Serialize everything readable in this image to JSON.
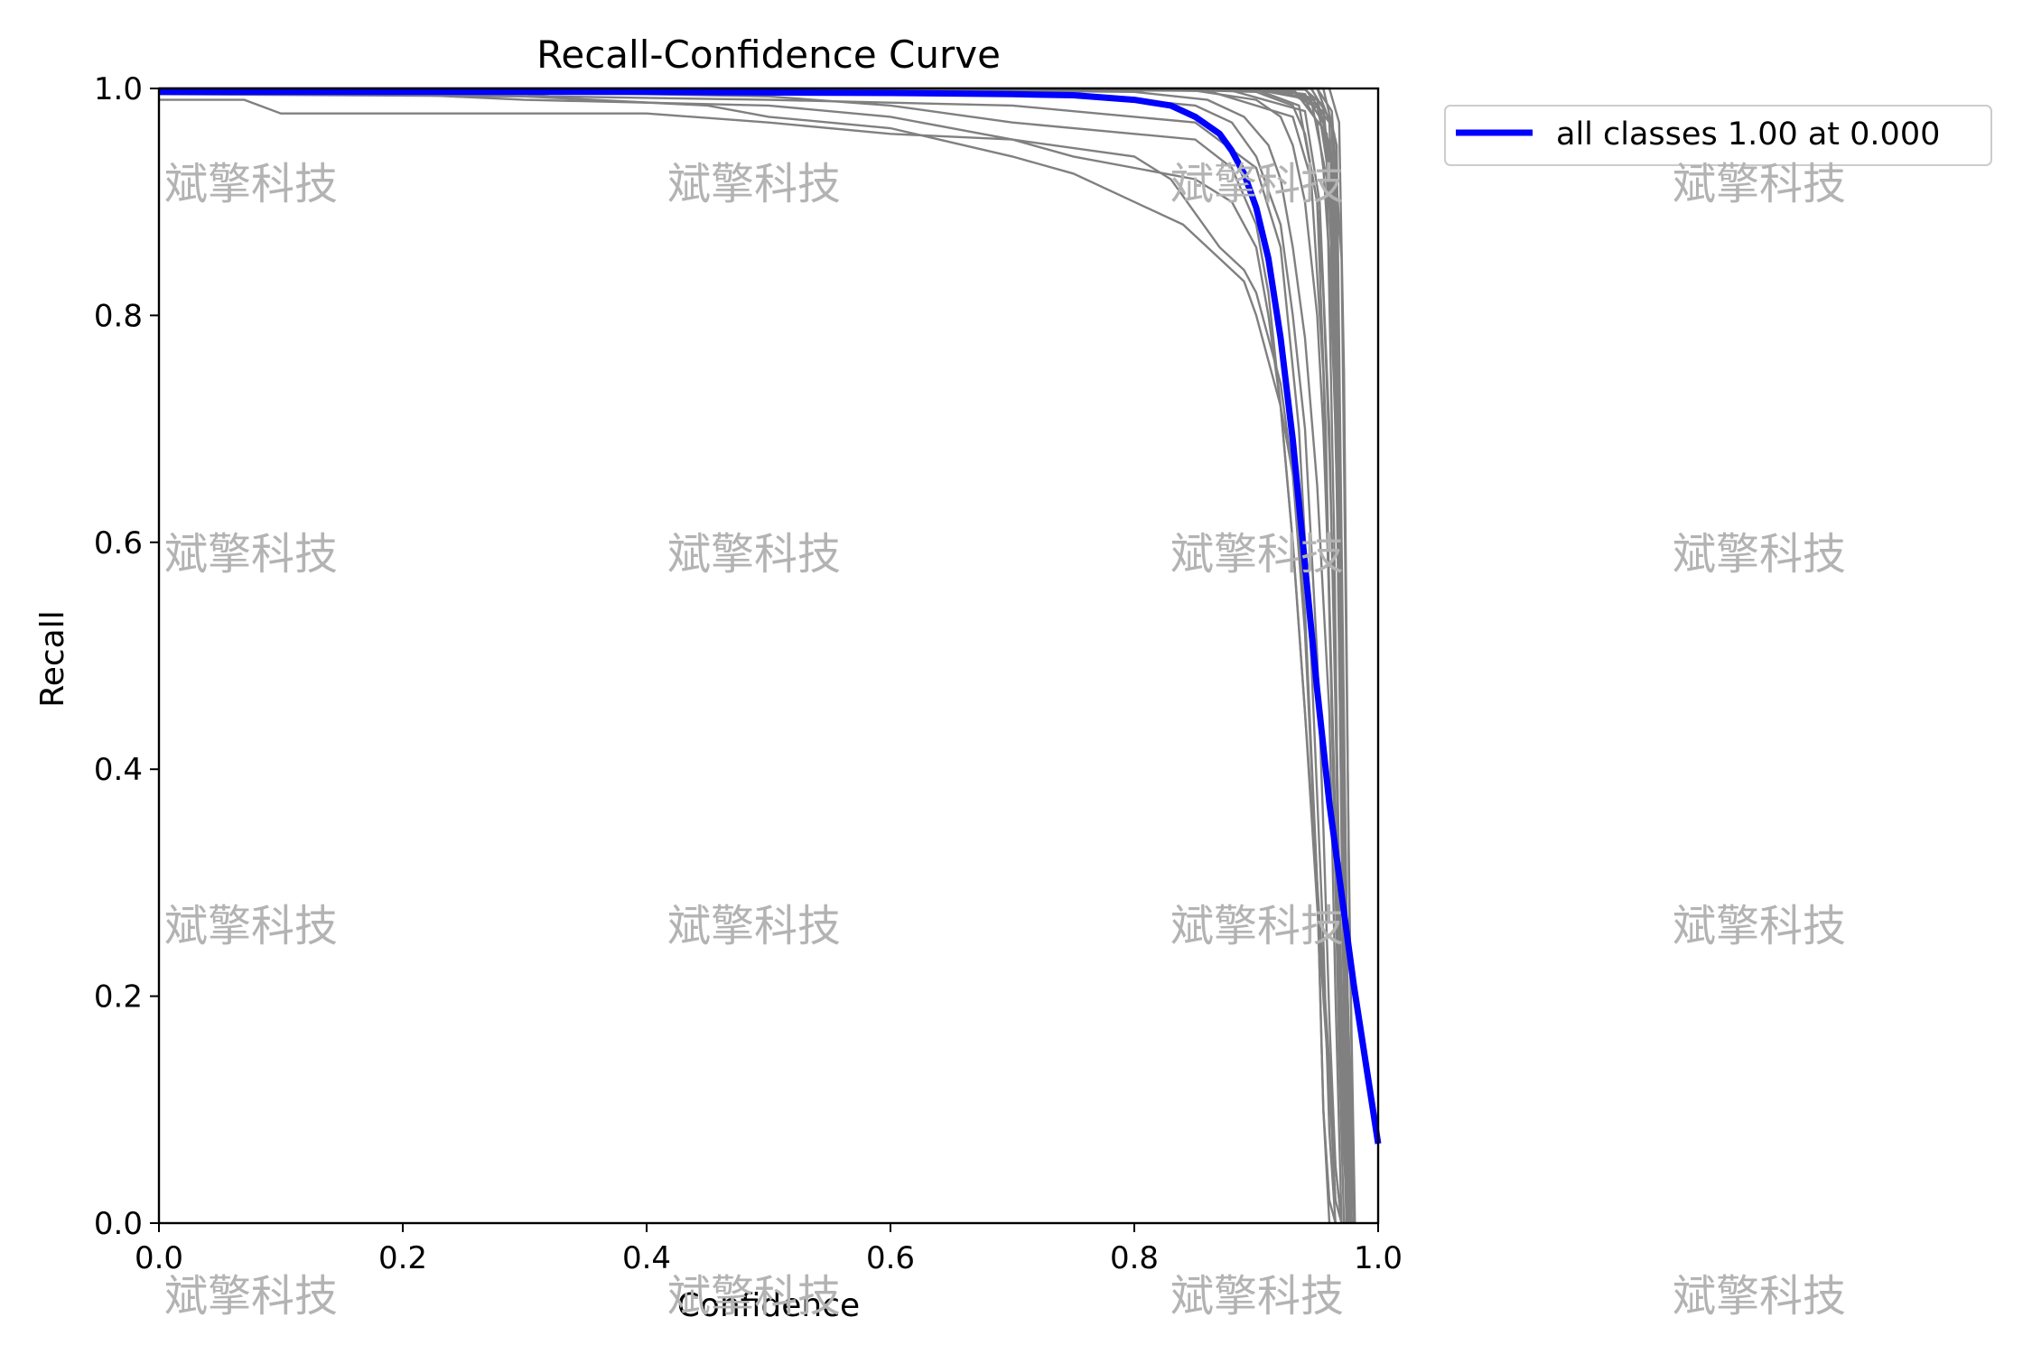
{
  "chart_data": {
    "type": "line",
    "title": "Recall-Confidence Curve",
    "xlabel": "Confidence",
    "ylabel": "Recall",
    "xlim": [
      0,
      1
    ],
    "ylim": [
      0,
      1
    ],
    "xticks": [
      "0.0",
      "0.2",
      "0.4",
      "0.6",
      "0.8",
      "1.0"
    ],
    "yticks": [
      "0.0",
      "0.2",
      "0.4",
      "0.6",
      "0.8",
      "1.0"
    ],
    "grid": false,
    "legend_position": "outside-top-right",
    "series": [
      {
        "name": "all classes 1.00 at 0.000",
        "color": "#0000ff",
        "x": [
          0.0,
          0.2,
          0.4,
          0.6,
          0.7,
          0.75,
          0.8,
          0.83,
          0.85,
          0.87,
          0.88,
          0.89,
          0.9,
          0.91,
          0.92,
          0.93,
          0.94,
          0.95,
          0.96,
          0.97,
          0.98,
          0.99,
          1.0
        ],
        "y": [
          0.997,
          0.997,
          0.997,
          0.996,
          0.995,
          0.994,
          0.99,
          0.985,
          0.975,
          0.96,
          0.945,
          0.925,
          0.895,
          0.85,
          0.78,
          0.69,
          0.58,
          0.47,
          0.37,
          0.29,
          0.21,
          0.14,
          0.07
        ]
      }
    ],
    "class_curves_color": "#808080",
    "class_curves": [
      {
        "x": [
          0.0,
          0.07,
          0.1,
          0.4,
          0.5,
          0.6,
          0.7,
          0.8,
          0.83,
          0.85,
          0.87,
          0.89,
          0.9,
          0.91,
          0.92,
          0.93,
          0.94,
          0.95,
          0.955,
          0.96,
          0.965
        ],
        "y": [
          0.99,
          0.99,
          0.978,
          0.978,
          0.97,
          0.96,
          0.955,
          0.94,
          0.92,
          0.89,
          0.86,
          0.84,
          0.82,
          0.78,
          0.74,
          0.66,
          0.54,
          0.3,
          0.1,
          0.02,
          0.0
        ]
      },
      {
        "x": [
          0.0,
          0.3,
          0.45,
          0.5,
          0.6,
          0.7,
          0.75,
          0.8,
          0.84,
          0.87,
          0.89,
          0.9,
          0.91,
          0.92,
          0.93,
          0.94,
          0.95,
          0.955,
          0.96
        ],
        "y": [
          0.995,
          0.993,
          0.985,
          0.975,
          0.965,
          0.94,
          0.925,
          0.9,
          0.88,
          0.85,
          0.83,
          0.8,
          0.76,
          0.72,
          0.66,
          0.52,
          0.3,
          0.1,
          0.0
        ]
      },
      {
        "x": [
          0.0,
          0.2,
          0.3,
          0.5,
          0.6,
          0.7,
          0.75,
          0.8,
          0.85,
          0.88,
          0.9,
          0.91,
          0.92,
          0.93,
          0.94,
          0.95,
          0.96,
          0.965,
          0.97
        ],
        "y": [
          0.997,
          0.995,
          0.99,
          0.985,
          0.975,
          0.955,
          0.94,
          0.93,
          0.92,
          0.9,
          0.86,
          0.8,
          0.72,
          0.6,
          0.45,
          0.28,
          0.12,
          0.02,
          0.0
        ]
      },
      {
        "x": [
          0.0,
          0.3,
          0.5,
          0.6,
          0.7,
          0.8,
          0.85,
          0.88,
          0.9,
          0.91,
          0.92,
          0.93,
          0.94,
          0.95,
          0.96,
          0.965,
          0.97
        ],
        "y": [
          0.998,
          0.997,
          0.993,
          0.985,
          0.97,
          0.96,
          0.955,
          0.93,
          0.88,
          0.82,
          0.72,
          0.6,
          0.45,
          0.3,
          0.14,
          0.05,
          0.0
        ]
      },
      {
        "x": [
          0.0,
          0.5,
          0.7,
          0.8,
          0.85,
          0.88,
          0.9,
          0.92,
          0.93,
          0.94,
          0.95,
          0.955,
          0.96,
          0.965,
          0.97
        ],
        "y": [
          1.0,
          0.998,
          0.995,
          0.99,
          0.985,
          0.97,
          0.94,
          0.88,
          0.8,
          0.7,
          0.5,
          0.35,
          0.18,
          0.05,
          0.0
        ]
      },
      {
        "x": [
          0.0,
          0.6,
          0.8,
          0.86,
          0.89,
          0.91,
          0.92,
          0.93,
          0.94,
          0.95,
          0.96,
          0.965,
          0.97
        ],
        "y": [
          1.0,
          0.999,
          0.997,
          0.99,
          0.975,
          0.95,
          0.92,
          0.86,
          0.78,
          0.65,
          0.45,
          0.2,
          0.0
        ]
      },
      {
        "x": [
          0.0,
          0.7,
          0.85,
          0.9,
          0.92,
          0.93,
          0.94,
          0.95,
          0.955,
          0.96,
          0.965,
          0.97,
          0.975
        ],
        "y": [
          1.0,
          1.0,
          0.998,
          0.99,
          0.975,
          0.95,
          0.9,
          0.8,
          0.7,
          0.55,
          0.35,
          0.12,
          0.0
        ]
      },
      {
        "x": [
          0.0,
          0.8,
          0.9,
          0.93,
          0.94,
          0.95,
          0.955,
          0.96,
          0.965,
          0.97,
          0.975
        ],
        "y": [
          1.0,
          1.0,
          0.997,
          0.985,
          0.96,
          0.9,
          0.82,
          0.68,
          0.48,
          0.2,
          0.0
        ]
      },
      {
        "x": [
          0.0,
          0.85,
          0.92,
          0.94,
          0.95,
          0.955,
          0.96,
          0.965,
          0.97,
          0.975,
          0.98
        ],
        "y": [
          1.0,
          1.0,
          0.998,
          0.99,
          0.97,
          0.93,
          0.85,
          0.7,
          0.45,
          0.15,
          0.0
        ]
      },
      {
        "x": [
          0.0,
          0.88,
          0.93,
          0.95,
          0.96,
          0.965,
          0.97,
          0.975,
          0.98
        ],
        "y": [
          1.0,
          1.0,
          0.997,
          0.985,
          0.93,
          0.8,
          0.55,
          0.2,
          0.0
        ]
      },
      {
        "x": [
          0.0,
          0.9,
          0.94,
          0.955,
          0.962,
          0.967,
          0.972,
          0.976,
          0.98
        ],
        "y": [
          1.0,
          1.0,
          0.995,
          0.97,
          0.88,
          0.7,
          0.4,
          0.1,
          0.0
        ]
      },
      {
        "x": [
          0.0,
          0.9,
          0.95,
          0.96,
          0.965,
          0.97,
          0.973,
          0.977
        ],
        "y": [
          1.0,
          1.0,
          0.99,
          0.95,
          0.8,
          0.5,
          0.2,
          0.0
        ]
      },
      {
        "x": [
          0.0,
          0.92,
          0.955,
          0.962,
          0.968,
          0.972,
          0.976
        ],
        "y": [
          1.0,
          1.0,
          0.98,
          0.9,
          0.65,
          0.3,
          0.0
        ]
      },
      {
        "x": [
          0.0,
          0.93,
          0.958,
          0.965,
          0.97,
          0.974
        ],
        "y": [
          1.0,
          1.0,
          0.96,
          0.75,
          0.35,
          0.0
        ]
      },
      {
        "x": [
          0.0,
          0.94,
          0.96,
          0.966,
          0.971,
          0.975
        ],
        "y": [
          1.0,
          1.0,
          0.97,
          0.8,
          0.4,
          0.0
        ]
      },
      {
        "x": [
          0.0,
          0.945,
          0.962,
          0.968,
          0.972,
          0.977
        ],
        "y": [
          1.0,
          1.0,
          0.97,
          0.7,
          0.3,
          0.0
        ]
      },
      {
        "x": [
          0.0,
          0.95,
          0.964,
          0.969,
          0.973,
          0.978
        ],
        "y": [
          1.0,
          1.0,
          0.96,
          0.65,
          0.25,
          0.0
        ]
      },
      {
        "x": [
          0.0,
          0.955,
          0.966,
          0.97,
          0.975,
          0.98
        ],
        "y": [
          1.0,
          1.0,
          0.95,
          0.6,
          0.2,
          0.0
        ]
      },
      {
        "x": [
          0.0,
          0.94,
          0.955,
          0.962,
          0.967,
          0.971,
          0.976
        ],
        "y": [
          1.0,
          0.999,
          0.985,
          0.9,
          0.6,
          0.25,
          0.0
        ]
      },
      {
        "x": [
          0.0,
          0.9,
          0.945,
          0.958,
          0.964,
          0.969,
          0.974
        ],
        "y": [
          1.0,
          0.999,
          0.99,
          0.92,
          0.6,
          0.2,
          0.0
        ]
      },
      {
        "x": [
          0.0,
          0.88,
          0.94,
          0.952,
          0.96,
          0.965,
          0.97,
          0.975
        ],
        "y": [
          1.0,
          0.998,
          0.98,
          0.9,
          0.7,
          0.45,
          0.15,
          0.0
        ]
      },
      {
        "x": [
          0.0,
          0.86,
          0.93,
          0.945,
          0.955,
          0.962,
          0.968,
          0.972
        ],
        "y": [
          1.0,
          0.998,
          0.975,
          0.92,
          0.75,
          0.45,
          0.15,
          0.0
        ]
      },
      {
        "x": [
          0.0,
          0.9,
          0.935,
          0.95,
          0.957,
          0.963,
          0.969,
          0.975
        ],
        "y": [
          1.0,
          0.999,
          0.985,
          0.9,
          0.7,
          0.4,
          0.12,
          0.0
        ]
      },
      {
        "x": [
          0.0,
          0.92,
          0.95,
          0.96,
          0.966,
          0.972,
          0.978
        ],
        "y": [
          1.0,
          1.0,
          0.99,
          0.92,
          0.65,
          0.2,
          0.0
        ]
      },
      {
        "x": [
          0.0,
          0.95,
          0.962,
          0.97,
          0.975,
          0.98
        ],
        "y": [
          1.0,
          1.0,
          0.98,
          0.85,
          0.4,
          0.0
        ]
      },
      {
        "x": [
          0.0,
          0.96,
          0.968,
          0.972,
          0.976,
          0.981
        ],
        "y": [
          1.0,
          1.0,
          0.97,
          0.75,
          0.3,
          0.0
        ]
      },
      {
        "x": [
          0.0,
          0.08,
          0.09,
          0.3,
          0.32,
          0.5,
          0.7,
          0.85,
          0.9,
          0.92,
          0.935,
          0.945,
          0.955,
          0.96,
          0.965
        ],
        "y": [
          0.999,
          0.999,
          0.995,
          0.995,
          0.993,
          0.99,
          0.985,
          0.97,
          0.93,
          0.86,
          0.7,
          0.5,
          0.25,
          0.08,
          0.0
        ]
      }
    ]
  },
  "watermarks": [
    "斌擎科技",
    "斌擎科技",
    "斌擎科技",
    "斌擎科技",
    "斌擎科技",
    "斌擎科技",
    "斌擎科技",
    "斌擎科技",
    "斌擎科技",
    "斌擎科技",
    "斌擎科技",
    "斌擎科技",
    "斌擎科技",
    "斌擎科技",
    "斌擎科技",
    "斌擎科技"
  ]
}
